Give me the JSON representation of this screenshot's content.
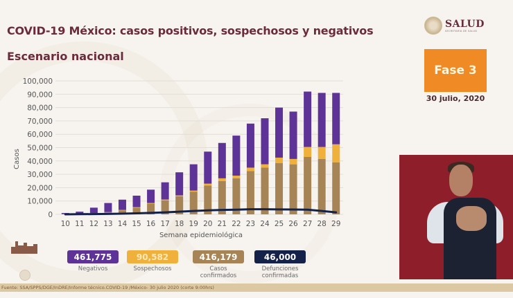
{
  "header": {
    "title": "COVID-19 México: casos positivos, sospechosos y negativos",
    "subtitle": "Escenario nacional"
  },
  "logo": {
    "name": "SALUD",
    "sub": "SECRETARÍA DE SALUD"
  },
  "phase": {
    "label": "Fase 3",
    "color": "#f08a24"
  },
  "date": "30 julio, 2020",
  "colors": {
    "negativos": "#5e3398",
    "sospechosos": "#f0b13c",
    "confirmados": "#a78456",
    "defunciones": "#14224a"
  },
  "stats": [
    {
      "value": "461,775",
      "label": "Negativos",
      "color": "#5e3398"
    },
    {
      "value": "90,582",
      "label": "Sospechosos",
      "color": "#f0b13c"
    },
    {
      "value": "416,179",
      "label": "Casos confirmados",
      "color": "#a78456"
    },
    {
      "value": "46,000",
      "label": "Defunciones confirmadas",
      "color": "#14224a"
    }
  ],
  "footer": "Fuente: SSA/SPPS/DGE/InDRE/Informe técnico.COVID-19 /México- 30 julio 2020 (corte 9:00hrs)",
  "chart_data": {
    "type": "bar",
    "stacked": true,
    "title": "",
    "xlabel": "Semana epidemiológica",
    "ylabel": "Casos",
    "ylim": [
      0,
      100000
    ],
    "yticks": [
      0,
      10000,
      20000,
      30000,
      40000,
      50000,
      60000,
      70000,
      80000,
      90000,
      100000
    ],
    "ytick_labels": [
      "0",
      "10,000",
      "20,000",
      "30,000",
      "40,000",
      "50,000",
      "60,000",
      "70,000",
      "80,000",
      "90,000",
      "100,000"
    ],
    "grid": true,
    "legend": "none",
    "categories": [
      "10",
      "11",
      "12",
      "13",
      "14",
      "15",
      "16",
      "17",
      "18",
      "19",
      "20",
      "21",
      "22",
      "23",
      "24",
      "25",
      "26",
      "27",
      "28",
      "29"
    ],
    "series": [
      {
        "name": "Casos confirmados",
        "kind": "bar",
        "values": [
          300,
          500,
          800,
          1500,
          3000,
          5000,
          8000,
          10500,
          13500,
          17000,
          21500,
          25000,
          27000,
          32500,
          35000,
          38500,
          37500,
          43000,
          41500,
          39000
        ]
      },
      {
        "name": "Sospechosos",
        "kind": "bar",
        "values": [
          0,
          0,
          100,
          200,
          300,
          400,
          500,
          600,
          700,
          800,
          1500,
          2000,
          2000,
          2500,
          2500,
          4000,
          4000,
          7500,
          9000,
          13500
        ]
      },
      {
        "name": "Negativos",
        "kind": "bar",
        "values": [
          700,
          1500,
          4100,
          6800,
          7700,
          8600,
          10000,
          12900,
          17300,
          19700,
          24000,
          26500,
          30000,
          33000,
          34500,
          37500,
          35500,
          41500,
          40500,
          38500
        ]
      },
      {
        "name": "Defunciones",
        "kind": "line",
        "values": [
          0,
          100,
          200,
          300,
          500,
          800,
          1100,
          1500,
          2000,
          2500,
          3000,
          3300,
          3500,
          3800,
          3800,
          3700,
          3600,
          3500,
          2500,
          1500
        ]
      }
    ]
  }
}
